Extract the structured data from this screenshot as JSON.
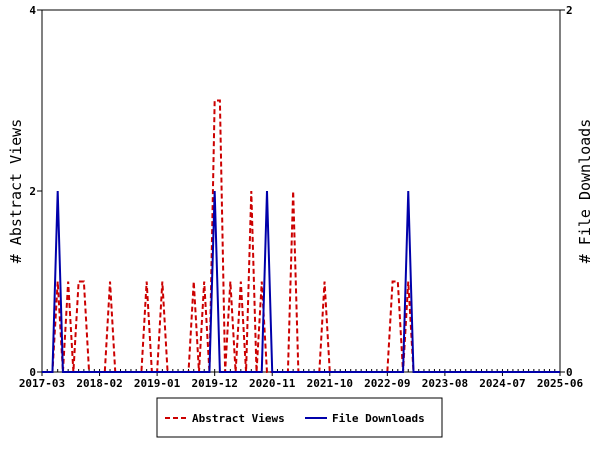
{
  "chart_data": {
    "type": "line",
    "categories": [
      "2017-03",
      null,
      null,
      null,
      null,
      null,
      null,
      null,
      null,
      null,
      null,
      "2018-02",
      null,
      null,
      null,
      null,
      null,
      null,
      null,
      null,
      null,
      null,
      "2019-01",
      null,
      null,
      null,
      null,
      null,
      null,
      null,
      null,
      null,
      null,
      "2019-12",
      null,
      null,
      null,
      null,
      null,
      null,
      null,
      null,
      null,
      null,
      "2020-11",
      null,
      null,
      null,
      null,
      null,
      null,
      null,
      null,
      null,
      null,
      "2021-10",
      null,
      null,
      null,
      null,
      null,
      null,
      null,
      null,
      null,
      null,
      "2022-09",
      null,
      null,
      null,
      null,
      null,
      null,
      null,
      null,
      null,
      null,
      "2023-08",
      null,
      null,
      null,
      null,
      null,
      null,
      null,
      null,
      null,
      null,
      "2024-07",
      null,
      null,
      null,
      null,
      null,
      null,
      null,
      null,
      null,
      null,
      "2025-06"
    ],
    "y_label": "# Abstract Views",
    "y2_label": "# File Downloads",
    "ylim": [
      0,
      4
    ],
    "yticks": [
      0,
      2,
      4
    ],
    "y2lim": [
      0,
      2
    ],
    "y2ticks": [
      0,
      2
    ],
    "series": [
      {
        "name": "Abstract Views",
        "color": "#cc0000",
        "dashed": true,
        "values": [
          0,
          0,
          0,
          1,
          0,
          1,
          0,
          1,
          1,
          0,
          0,
          0,
          0,
          1,
          0,
          0,
          0,
          0,
          0,
          0,
          1,
          0,
          0,
          1,
          0,
          0,
          0,
          0,
          0,
          1,
          0,
          1,
          0,
          3,
          3,
          0,
          1,
          0,
          1,
          0,
          2,
          0,
          1,
          0,
          0,
          0,
          0,
          0,
          2,
          0,
          0,
          0,
          0,
          0,
          1,
          0,
          0,
          0,
          0,
          0,
          0,
          0,
          0,
          0,
          0,
          0,
          0,
          1,
          1,
          0,
          1,
          0,
          0,
          0,
          0,
          0,
          0,
          0,
          0,
          0,
          0,
          0,
          0,
          0,
          0,
          0,
          0,
          0,
          0,
          0,
          0,
          0,
          0,
          0,
          0,
          0,
          0,
          0,
          0,
          0
        ]
      },
      {
        "name": "File Downloads",
        "color": "#0000aa",
        "axis": "y2",
        "values": [
          0,
          0,
          0,
          1,
          0,
          0,
          0,
          0,
          0,
          0,
          0,
          0,
          0,
          0,
          0,
          0,
          0,
          0,
          0,
          0,
          0,
          0,
          0,
          0,
          0,
          0,
          0,
          0,
          0,
          0,
          0,
          0,
          0,
          1,
          0,
          0,
          0,
          0,
          0,
          0,
          0,
          0,
          0,
          1,
          0,
          0,
          0,
          0,
          0,
          0,
          0,
          0,
          0,
          0,
          0,
          0,
          0,
          0,
          0,
          0,
          0,
          0,
          0,
          0,
          0,
          0,
          0,
          0,
          0,
          0,
          1,
          0,
          0,
          0,
          0,
          0,
          0,
          0,
          0,
          0,
          0,
          0,
          0,
          0,
          0,
          0,
          0,
          0,
          0,
          0,
          0,
          0,
          0,
          0,
          0,
          0,
          0,
          0,
          0,
          0
        ]
      }
    ]
  }
}
